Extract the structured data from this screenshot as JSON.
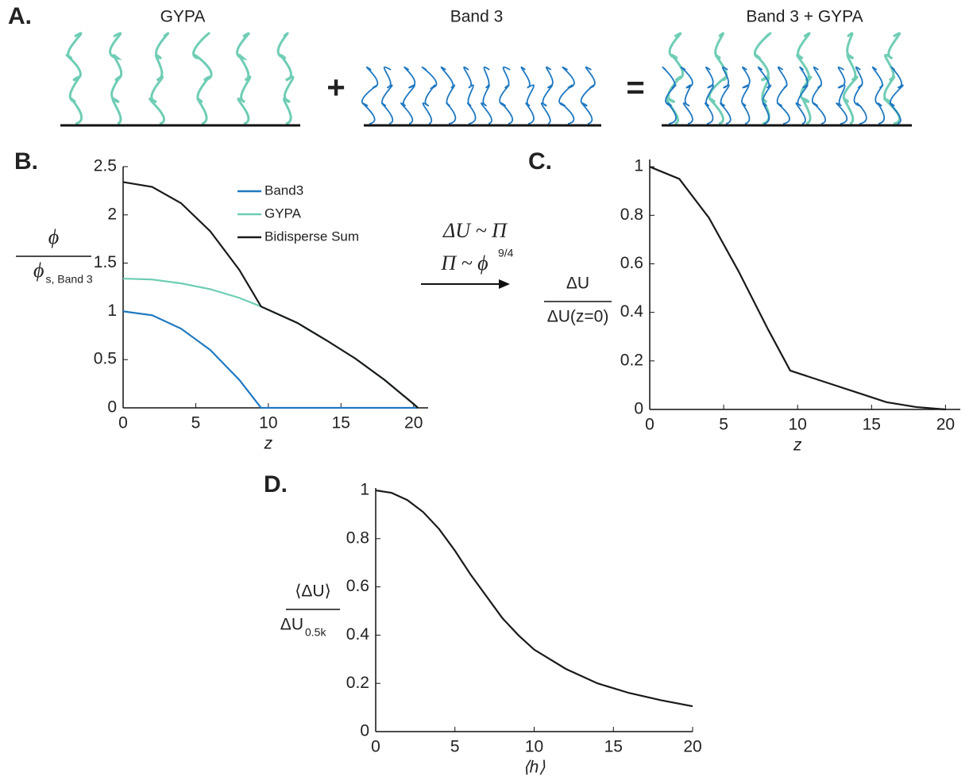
{
  "panel_a": {
    "label": "A.",
    "left_title": "GYPA",
    "middle_title": "Band 3",
    "right_title": "Band 3 + GYPA",
    "plus": "+",
    "equals": "="
  },
  "arrow_annotation": {
    "line1": "ΔU ~ Π",
    "line2": "Π ~ ϕ",
    "exponent": "9/4"
  },
  "chart_data": [
    {
      "type": "line",
      "panel": "B.",
      "x": [
        0,
        2,
        4,
        6,
        8,
        9.5,
        12,
        14,
        16,
        18,
        20,
        20.3
      ],
      "series": [
        {
          "name": "Band3",
          "color": "#1f78c1",
          "values": [
            1,
            0.96,
            0.82,
            0.6,
            0.29,
            0,
            0,
            0,
            0,
            0,
            0,
            0
          ]
        },
        {
          "name": "GYPA",
          "color": "#6fcdb5",
          "values": [
            1.34,
            1.33,
            1.29,
            1.23,
            1.14,
            1.05,
            0.88,
            0.7,
            0.51,
            0.29,
            0.04,
            0
          ]
        },
        {
          "name": "Bidisperse Sum",
          "color": "#1a1a1a",
          "values": [
            2.34,
            2.29,
            2.12,
            1.83,
            1.43,
            1.05,
            0.88,
            0.7,
            0.51,
            0.29,
            0.04,
            0
          ]
        }
      ],
      "xlim": [
        0,
        21
      ],
      "ylim": [
        0,
        2.5
      ],
      "xticks": [
        0,
        5,
        10,
        15,
        20
      ],
      "yticks": [
        0,
        0.5,
        1,
        1.5,
        2,
        2.5
      ],
      "xlabel": "z",
      "ylabel": {
        "numerator": "ϕ",
        "denominator": "ϕ",
        "subscript": "s, Band 3"
      },
      "legend": "upper right"
    },
    {
      "type": "line",
      "panel": "C.",
      "x": [
        0,
        2,
        4,
        6,
        8,
        9.5,
        12,
        14,
        16,
        18,
        20
      ],
      "series": [
        {
          "color": "#1a1a1a",
          "values": [
            1,
            0.95,
            0.79,
            0.57,
            0.33,
            0.16,
            0.11,
            0.07,
            0.03,
            0.01,
            0
          ]
        }
      ],
      "xlim": [
        0,
        21
      ],
      "ylim": [
        0,
        1.03
      ],
      "xticks": [
        0,
        5,
        10,
        15,
        20
      ],
      "yticks": [
        0,
        0.2,
        0.4,
        0.6,
        0.8,
        1
      ],
      "xlabel": "z",
      "ylabel": {
        "numerator": "ΔU",
        "denominator": "ΔU(z=0)"
      }
    },
    {
      "type": "line",
      "panel": "D.",
      "x": [
        0,
        1,
        2,
        3,
        4,
        5,
        6,
        7,
        8,
        9,
        10,
        12,
        14,
        16,
        18,
        20
      ],
      "series": [
        {
          "color": "#1a1a1a",
          "values": [
            1,
            0.99,
            0.96,
            0.91,
            0.84,
            0.75,
            0.65,
            0.56,
            0.47,
            0.4,
            0.34,
            0.26,
            0.2,
            0.16,
            0.13,
            0.105
          ]
        }
      ],
      "xlim": [
        0,
        20
      ],
      "ylim": [
        0,
        1.01
      ],
      "xticks": [
        0,
        5,
        10,
        15,
        20
      ],
      "yticks": [
        0,
        0.2,
        0.4,
        0.6,
        0.8,
        1
      ],
      "xlabel": "⟨h⟩",
      "ylabel": {
        "numerator": "⟨ΔU⟩",
        "denominator": "ΔU",
        "subscript": "0.5k"
      }
    }
  ]
}
